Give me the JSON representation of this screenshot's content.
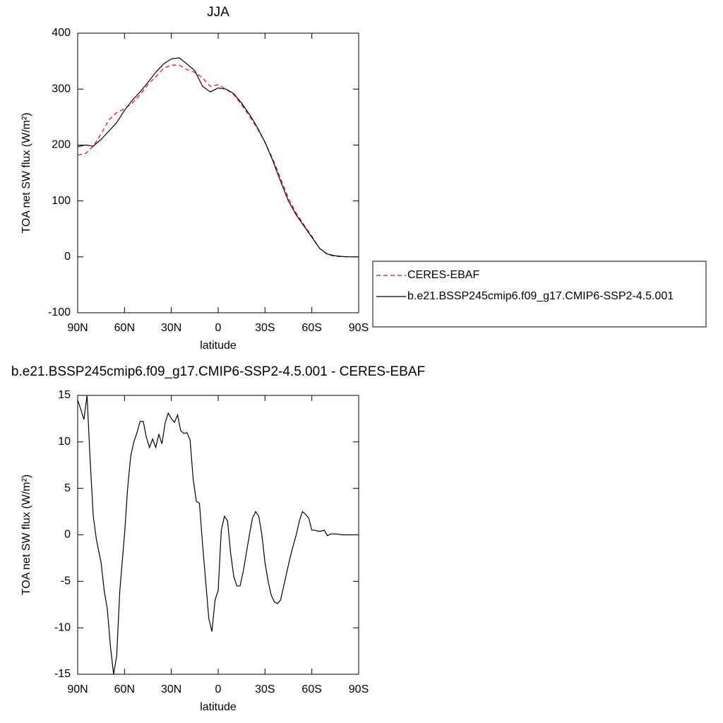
{
  "chart_data": [
    {
      "type": "line",
      "title": "JJA",
      "xlabel": "latitude",
      "ylabel": "TOA net SW flux (W/m²)",
      "x": [
        90,
        85,
        80,
        75,
        70,
        65,
        60,
        55,
        50,
        45,
        40,
        35,
        30,
        25,
        20,
        15,
        10,
        5,
        0,
        -5,
        -10,
        -15,
        -20,
        -25,
        -30,
        -35,
        -40,
        -45,
        -50,
        -55,
        -60,
        -65,
        -70,
        -75,
        -80,
        -85,
        -90
      ],
      "series": [
        {
          "name": "CERES-EBAF",
          "color": "#ff0000",
          "line_style": "dashed",
          "values": [
            182,
            185,
            198,
            220,
            245,
            258,
            265,
            275,
            290,
            308,
            322,
            337,
            343,
            343,
            335,
            330,
            320,
            305,
            308,
            300,
            290,
            272,
            252,
            230,
            205,
            175,
            140,
            105,
            78,
            57,
            37,
            15,
            4,
            1,
            0,
            0,
            0
          ]
        },
        {
          "name": "b.e21.BSSP245cmip6.f09_g17.CMIP6-SSP2-4.5.001",
          "color": "#000000",
          "line_style": "solid",
          "values": [
            197,
            200,
            198,
            210,
            225,
            240,
            262,
            280,
            295,
            312,
            330,
            345,
            354,
            356,
            345,
            333,
            305,
            295,
            302,
            300,
            292,
            275,
            255,
            232,
            205,
            172,
            135,
            100,
            75,
            55,
            35,
            15,
            5,
            2,
            0.5,
            0,
            0
          ]
        }
      ],
      "xlim": [
        90,
        -90
      ],
      "xticks": [
        {
          "value": 90,
          "label": "90N"
        },
        {
          "value": 60,
          "label": "60N"
        },
        {
          "value": 30,
          "label": "30N"
        },
        0,
        {
          "value": -30,
          "label": "30S"
        },
        {
          "value": -60,
          "label": "60S"
        },
        {
          "value": -90,
          "label": "90S"
        }
      ],
      "ylim": [
        -100,
        400
      ],
      "yticks": [
        -100,
        0,
        100,
        200,
        300,
        400
      ],
      "legend": "right"
    },
    {
      "type": "line",
      "title": "b.e21.BSSP245cmip6.f09_g17.CMIP6-SSP2-4.5.001 - CERES-EBAF",
      "xlabel": "latitude",
      "ylabel": "TOA net SW flux (W/m²)",
      "x": [
        90,
        88,
        86,
        84,
        82,
        80,
        78,
        75,
        73,
        71,
        69,
        67,
        65,
        63,
        60,
        58,
        56,
        54,
        52,
        50,
        48,
        46,
        44,
        42,
        40,
        38,
        36,
        34,
        32,
        30,
        28,
        26,
        24,
        22,
        20,
        18,
        16,
        14,
        12,
        10,
        8,
        6,
        4,
        2,
        0,
        -2,
        -4,
        -6,
        -8,
        -10,
        -12,
        -14,
        -16,
        -18,
        -20,
        -22,
        -24,
        -26,
        -28,
        -30,
        -32,
        -34,
        -36,
        -38,
        -40,
        -42,
        -44,
        -46,
        -48,
        -50,
        -52,
        -54,
        -56,
        -58,
        -60,
        -62,
        -64,
        -66,
        -68,
        -70,
        -72,
        -75,
        -80,
        -85,
        -90
      ],
      "values": [
        14.5,
        13.5,
        12.4,
        15,
        8,
        2,
        -0.5,
        -3,
        -6,
        -8,
        -12,
        -15,
        -13,
        -6,
        0,
        5,
        8.5,
        10,
        11,
        12.2,
        12.2,
        10.5,
        9.4,
        10.3,
        9.4,
        10.8,
        9.8,
        12,
        13.1,
        12.5,
        12.1,
        12.9,
        11.2,
        10.9,
        11,
        10.2,
        6,
        3.6,
        3.4,
        -1,
        -5,
        -9,
        -10.4,
        -7,
        -6,
        0.5,
        2,
        1.5,
        -2,
        -4.5,
        -5.5,
        -5.5,
        -4,
        -2,
        0,
        1.8,
        2.5,
        2,
        0,
        -3,
        -5,
        -6.5,
        -7.2,
        -7.4,
        -7,
        -5.5,
        -4,
        -2.5,
        -1.2,
        0,
        1.5,
        2.5,
        2.2,
        1.8,
        0.5,
        0.5,
        0.4,
        0.4,
        0.5,
        -0.1,
        0.1,
        0.1,
        0,
        0,
        0
      ],
      "color": "#000000",
      "xlim": [
        90,
        -90
      ],
      "xticks": [
        {
          "value": 90,
          "label": "90N"
        },
        {
          "value": 60,
          "label": "60N"
        },
        {
          "value": 30,
          "label": "30N"
        },
        0,
        {
          "value": -30,
          "label": "30S"
        },
        {
          "value": -60,
          "label": "60S"
        },
        {
          "value": -90,
          "label": "90S"
        }
      ],
      "ylim": [
        -15,
        15
      ],
      "yticks": [
        -15,
        -10,
        -5,
        0,
        5,
        10,
        15
      ]
    }
  ]
}
